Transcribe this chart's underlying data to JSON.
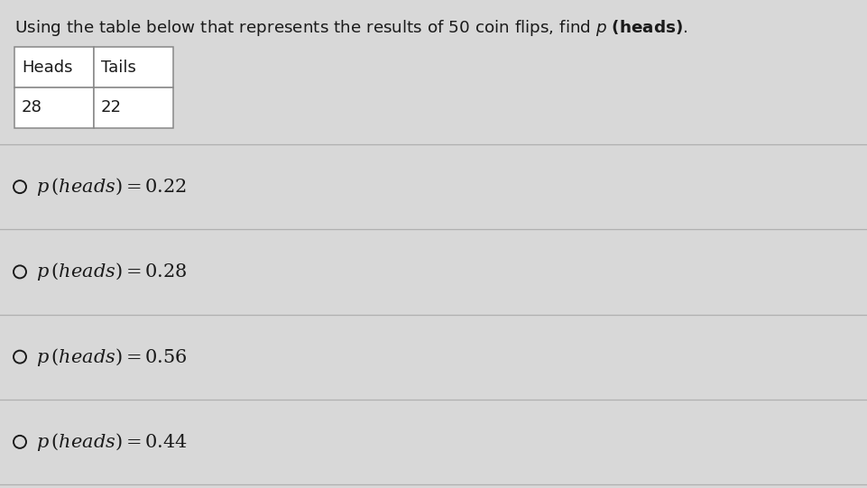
{
  "title_prefix": "Using the table below that represents the results of 50 coin flips, find ",
  "title_p": "p",
  "title_suffix": " (heads).",
  "table_headers": [
    "Heads",
    "Tails"
  ],
  "table_values": [
    "28",
    "22"
  ],
  "option_values": [
    "0.22",
    "0.28",
    "0.56",
    "0.44"
  ],
  "bg_color": "#d8d8d8",
  "white_color": "#ffffff",
  "text_color": "#1a1a1a",
  "line_color": "#b0b0b0",
  "table_border_color": "#888888",
  "fig_width": 9.62,
  "fig_height": 5.41,
  "dpi": 100
}
